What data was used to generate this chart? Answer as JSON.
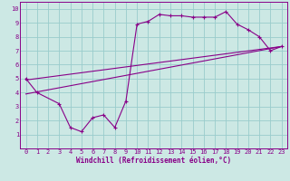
{
  "xlabel": "Windchill (Refroidissement éolien,°C)",
  "bg_color": "#cce8e4",
  "plot_bg_color": "#cce8e4",
  "line_color": "#880088",
  "grid_color": "#99cccc",
  "spine_color": "#880088",
  "xlim": [
    -0.5,
    23.5
  ],
  "ylim": [
    0,
    10.5
  ],
  "xticks": [
    0,
    1,
    2,
    3,
    4,
    5,
    6,
    7,
    8,
    9,
    10,
    11,
    12,
    13,
    14,
    15,
    16,
    17,
    18,
    19,
    20,
    21,
    22,
    23
  ],
  "yticks": [
    1,
    2,
    3,
    4,
    5,
    6,
    7,
    8,
    9,
    10
  ],
  "series1_x": [
    0,
    1,
    3,
    4,
    5,
    6,
    7,
    8,
    9,
    10,
    11,
    12,
    13,
    14,
    15,
    16,
    17,
    18,
    19,
    20,
    21,
    22,
    23
  ],
  "series1_y": [
    5.0,
    4.0,
    3.2,
    1.5,
    1.2,
    2.2,
    2.4,
    1.5,
    3.4,
    8.9,
    9.1,
    9.6,
    9.5,
    9.5,
    9.4,
    9.4,
    9.4,
    9.8,
    8.9,
    8.5,
    8.0,
    7.0,
    7.3
  ],
  "series2_x": [
    0,
    23
  ],
  "series2_y": [
    4.9,
    7.3
  ],
  "series3_x": [
    0,
    23
  ],
  "series3_y": [
    3.9,
    7.3
  ],
  "tick_fontsize": 5.0,
  "xlabel_fontsize": 5.5
}
